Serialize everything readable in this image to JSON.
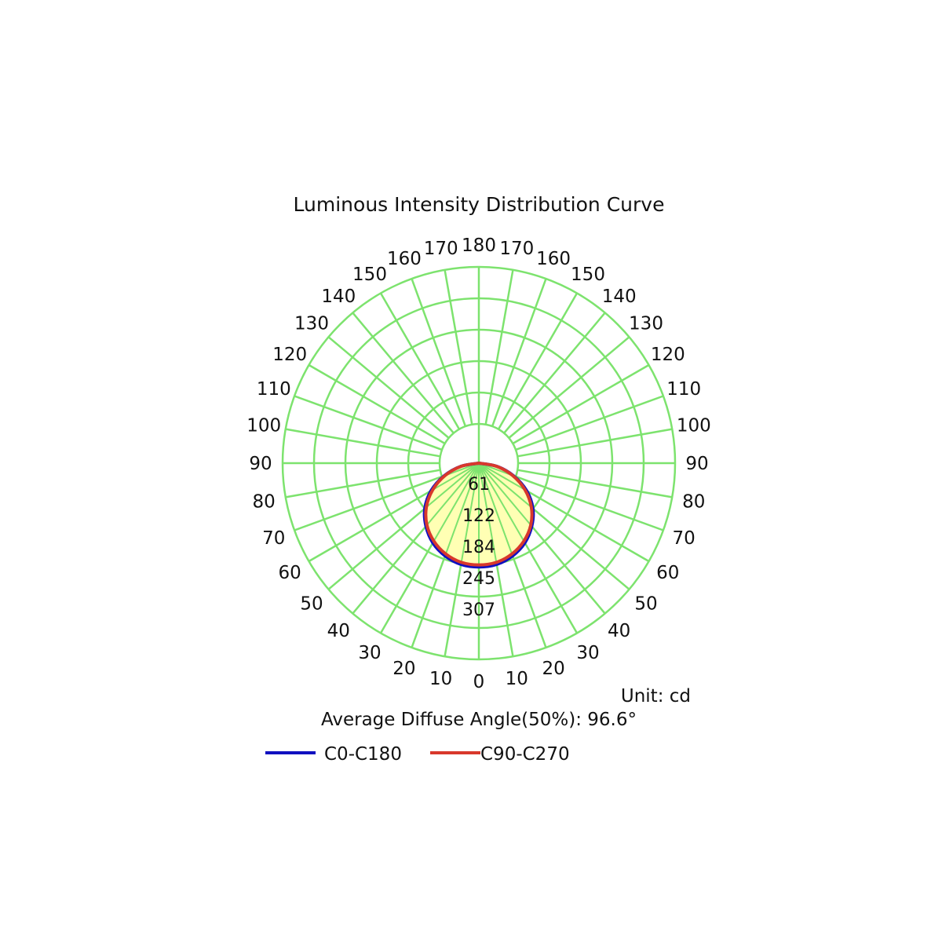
{
  "chart_data": {
    "type": "polar",
    "title": "Luminous Intensity Distribution Curve",
    "unit_label": "Unit: cd",
    "average_angle_label": "Average Diffuse Angle(50%): 96.6°",
    "radial_ticks": [
      "61",
      "122",
      "184",
      "245",
      "307"
    ],
    "radial_max": 307,
    "angle_labels_left": [
      "0",
      "10",
      "20",
      "30",
      "40",
      "50",
      "60",
      "70",
      "80",
      "90",
      "100",
      "110",
      "120",
      "130",
      "140",
      "150",
      "160",
      "170",
      "180"
    ],
    "angle_labels_right": [
      "10",
      "20",
      "30",
      "40",
      "50",
      "60",
      "70",
      "80",
      "90",
      "100",
      "110",
      "120",
      "130",
      "140",
      "150",
      "160",
      "170"
    ],
    "angles": [
      0,
      10,
      20,
      30,
      40,
      50,
      60,
      70,
      80,
      90
    ],
    "series": [
      {
        "name": "C0-C180",
        "color": "#1010c0",
        "values": [
          203,
          201,
          193,
          180,
          161,
          138,
          108,
          72,
          36,
          0
        ]
      },
      {
        "name": "C90-C270",
        "color": "#d8382c",
        "values": [
          199,
          197,
          189,
          176,
          158,
          134,
          104,
          70,
          35,
          0
        ]
      }
    ],
    "grid_color": "#7de36e",
    "fill_color": "#ffffb4",
    "legend_position": "bottom"
  }
}
